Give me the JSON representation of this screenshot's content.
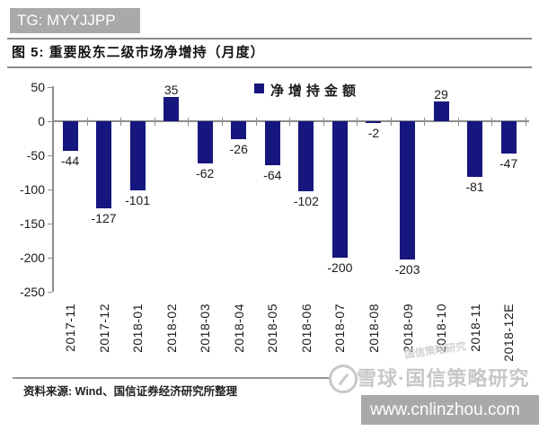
{
  "top_banner": {
    "text": "TG: MYYJJPP"
  },
  "header": {
    "title": "图 5: 重要股东二级市场净增持（月度）"
  },
  "chart_data": {
    "type": "bar",
    "title": "重要股东二级市场净增持（月度）",
    "legend": [
      "净增持金额"
    ],
    "legend_position": "top-center",
    "categories": [
      "2017-11",
      "2017-12",
      "2018-01",
      "2018-02",
      "2018-03",
      "2018-04",
      "2018-05",
      "2018-06",
      "2018-07",
      "2018-08",
      "2018-09",
      "2018-10",
      "2018-11",
      "2018-12E"
    ],
    "values": [
      -44,
      -127,
      -101,
      35,
      -62,
      -26,
      -64,
      -102,
      -200,
      -2,
      -203,
      29,
      -81,
      -47
    ],
    "bar_labels": true,
    "xlabel": "",
    "ylabel": "",
    "ylim": [
      -250,
      50
    ],
    "yticks": [
      50,
      0,
      -50,
      -100,
      -150,
      -200,
      -250
    ],
    "grid": false,
    "bar_color": "#16167f"
  },
  "footer": {
    "source": "资料来源: Wind、国信证券经济研究所整理"
  },
  "watermark": {
    "logo": "xueqiu-circle-logo",
    "brand_text": "雪球·国信策略研究",
    "small_text": "国信策略研究"
  },
  "bottom_banner": {
    "url_text": "www.cnlinzhou.com"
  },
  "colors": {
    "bar": "#16167f",
    "banner_bg": "#a9a9a9",
    "axis": "#8c8c8c",
    "watermark": "#c8c8c8"
  }
}
